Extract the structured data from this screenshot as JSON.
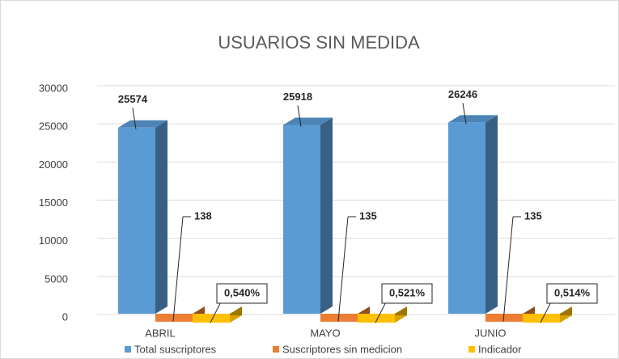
{
  "chart_data": {
    "type": "bar3d",
    "title": "USUARIOS SIN MEDIDA",
    "categories": [
      "ABRIL",
      "MAYO",
      "JUNIO"
    ],
    "series": [
      {
        "name": "Total suscriptores",
        "color": "#5b9bd5",
        "values": [
          25574,
          25918,
          26246
        ]
      },
      {
        "name": "Suscriptores sin medicion",
        "color": "#ed7d31",
        "values": [
          138,
          135,
          135
        ]
      },
      {
        "name": "Indicador",
        "color": "#ffc000",
        "values": [
          0.54,
          0.521,
          0.514
        ],
        "value_labels": [
          "0,540%",
          "0,521%",
          "0,514%"
        ]
      }
    ],
    "ylim": [
      0,
      30000
    ],
    "yticks": [
      0,
      5000,
      10000,
      15000,
      20000,
      25000,
      30000
    ],
    "grid": true,
    "legend": "bottom"
  }
}
